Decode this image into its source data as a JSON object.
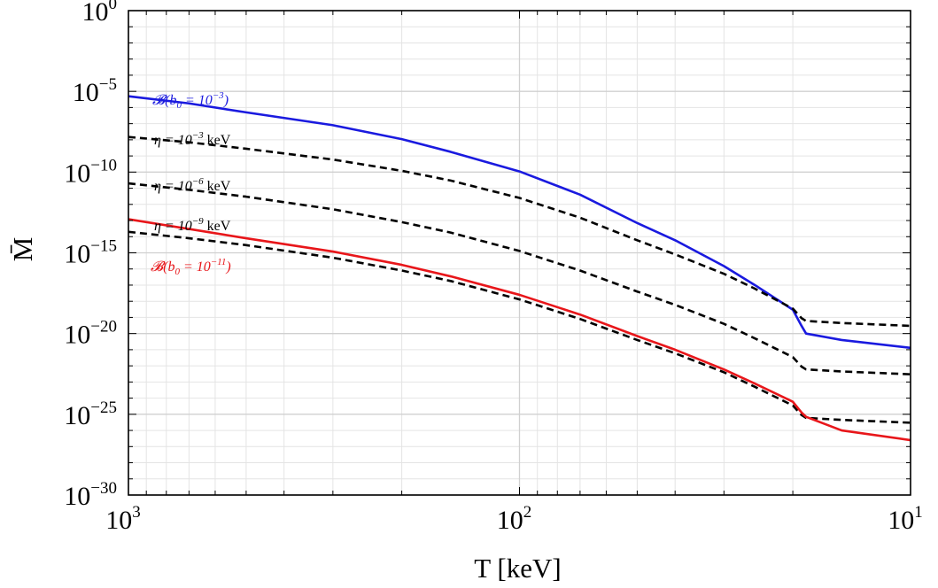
{
  "chart_data": {
    "type": "line",
    "x_scale": "log",
    "y_scale": "log",
    "x_reversed": true,
    "xlim": [
      1000,
      10
    ],
    "ylim": [
      1e-30,
      1
    ],
    "grid": true,
    "title": "",
    "xlabel": "T [keV]",
    "ylabel": "M̄",
    "x_ticks": [
      {
        "value": 1000,
        "base": "10",
        "exp": "3"
      },
      {
        "value": 100,
        "base": "10",
        "exp": "2"
      },
      {
        "value": 10,
        "base": "10",
        "exp": "1"
      }
    ],
    "y_ticks": [
      {
        "value": 1,
        "base": "10",
        "exp": "0"
      },
      {
        "value": 1e-05,
        "base": "10",
        "exp": "−5"
      },
      {
        "value": 1e-10,
        "base": "10",
        "exp": "−10"
      },
      {
        "value": 1e-15,
        "base": "10",
        "exp": "−15"
      },
      {
        "value": 1e-20,
        "base": "10",
        "exp": "−20"
      },
      {
        "value": 1e-25,
        "base": "10",
        "exp": "−25"
      },
      {
        "value": 1e-30,
        "base": "10",
        "exp": "−30"
      }
    ],
    "series": [
      {
        "key": "blue",
        "color": "#1a1adf",
        "dash": "solid",
        "label_parts": [
          "𝓑(",
          "b",
          "0",
          " = 10",
          "−3",
          ")"
        ],
        "x": [
          1000,
          700,
          500,
          300,
          200,
          150,
          100,
          70,
          50,
          40,
          30,
          25,
          20,
          19,
          18.5,
          15,
          10
        ],
        "y": [
          5e-06,
          1.8e-06,
          5e-07,
          8e-08,
          1.1e-08,
          1.8e-09,
          1.1e-10,
          4e-12,
          7e-14,
          6e-15,
          1.5e-16,
          1e-17,
          3e-19,
          3e-20,
          1e-20,
          4e-21,
          1.3e-21
        ]
      },
      {
        "key": "eta3",
        "color": "#000000",
        "dash": "dashed",
        "label_parts": [
          "η = 10",
          "−3",
          " keV"
        ],
        "x": [
          1000,
          700,
          500,
          300,
          200,
          150,
          100,
          70,
          50,
          40,
          30,
          25,
          20,
          19,
          18.5,
          15,
          10
        ],
        "y": [
          1.5e-08,
          7e-09,
          2.8e-09,
          6e-10,
          1.2e-10,
          3e-11,
          2.5e-12,
          1.5e-13,
          6e-15,
          8e-16,
          5e-17,
          6e-18,
          3.5e-19,
          9e-20,
          6e-20,
          4.5e-20,
          3e-20
        ]
      },
      {
        "key": "eta6",
        "color": "#000000",
        "dash": "dashed",
        "label_parts": [
          "η = 10",
          "−6",
          " keV"
        ],
        "x": [
          1000,
          700,
          500,
          300,
          200,
          150,
          100,
          70,
          50,
          40,
          30,
          25,
          20,
          19,
          18.5,
          15,
          10
        ],
        "y": [
          2e-11,
          8e-12,
          3e-12,
          5e-13,
          8e-14,
          1.8e-14,
          1.3e-15,
          8e-17,
          4e-18,
          6e-19,
          4e-20,
          5e-21,
          3.5e-22,
          9e-23,
          6e-23,
          4.5e-23,
          3e-23
        ]
      },
      {
        "key": "eta9",
        "color": "#000000",
        "dash": "dashed",
        "label_parts": [
          "η = 10",
          "−9",
          " keV"
        ],
        "x": [
          1000,
          700,
          500,
          300,
          200,
          150,
          100,
          70,
          50,
          40,
          30,
          25,
          20,
          19,
          18.5,
          15,
          10
        ],
        "y": [
          2e-14,
          8e-15,
          3e-15,
          5e-16,
          8e-17,
          1.8e-17,
          1.3e-18,
          8e-20,
          4e-21,
          6e-22,
          4e-23,
          5e-24,
          3.5e-25,
          9e-26,
          6e-26,
          4.5e-26,
          3e-26
        ]
      },
      {
        "key": "red",
        "color": "#e8161a",
        "dash": "solid",
        "label_parts": [
          "𝓑(",
          "b",
          "0",
          " = 10",
          "−11",
          ")"
        ],
        "x": [
          1000,
          700,
          500,
          300,
          200,
          150,
          100,
          70,
          50,
          40,
          30,
          25,
          20,
          19,
          18.5,
          15,
          10
        ],
        "y": [
          1.2e-13,
          3e-14,
          8e-15,
          1.2e-15,
          1.8e-16,
          3.5e-17,
          2.5e-18,
          1.5e-19,
          7e-21,
          1e-21,
          6e-23,
          8e-24,
          6e-25,
          1.3e-25,
          7e-26,
          1e-26,
          2.5e-27
        ]
      }
    ]
  }
}
